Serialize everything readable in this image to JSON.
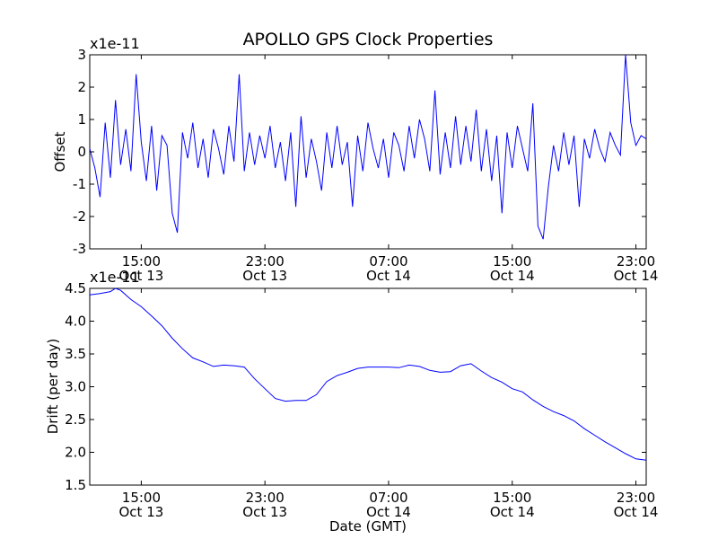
{
  "figure": {
    "title": "APOLLO GPS Clock Properties"
  },
  "chart_data": [
    {
      "type": "line",
      "title": "APOLLO GPS Clock Properties",
      "xlabel": "",
      "ylabel": "Offset",
      "y_multiplier": "x1e-11",
      "ylim": [
        -3,
        3
      ],
      "yticks": [
        "-3",
        "-2",
        "-1",
        "0",
        "1",
        "2",
        "3"
      ],
      "xticks": [
        {
          "time": "15:00",
          "date": "Oct 13"
        },
        {
          "time": "23:00",
          "date": "Oct 13"
        },
        {
          "time": "07:00",
          "date": "Oct 14"
        },
        {
          "time": "15:00",
          "date": "Oct 14"
        },
        {
          "time": "23:00",
          "date": "Oct 14"
        }
      ],
      "xlim": [
        "2011-10-13T11:40",
        "2011-10-14T23:40"
      ],
      "color": "#0000ff",
      "grid": false,
      "series": [
        {
          "x": [
            "2011-10-13T11:40",
            "2011-10-13T12:00",
            "2011-10-13T12:20",
            "2011-10-13T12:40",
            "2011-10-13T13:00",
            "2011-10-13T13:20",
            "2011-10-13T13:40",
            "2011-10-13T14:00",
            "2011-10-13T14:20",
            "2011-10-13T14:40",
            "2011-10-13T15:00",
            "2011-10-13T15:20",
            "2011-10-13T15:40",
            "2011-10-13T16:00",
            "2011-10-13T16:20",
            "2011-10-13T16:40",
            "2011-10-13T17:00",
            "2011-10-13T17:20",
            "2011-10-13T17:40",
            "2011-10-13T18:00",
            "2011-10-13T18:20",
            "2011-10-13T18:40",
            "2011-10-13T19:00",
            "2011-10-13T19:20",
            "2011-10-13T19:40",
            "2011-10-13T20:00",
            "2011-10-13T20:20",
            "2011-10-13T20:40",
            "2011-10-13T21:00",
            "2011-10-13T21:20",
            "2011-10-13T21:40",
            "2011-10-13T22:00",
            "2011-10-13T22:20",
            "2011-10-13T22:40",
            "2011-10-13T23:00",
            "2011-10-13T23:20",
            "2011-10-13T23:40",
            "2011-10-14T00:00",
            "2011-10-14T00:20",
            "2011-10-14T00:40",
            "2011-10-14T01:00",
            "2011-10-14T01:20",
            "2011-10-14T01:40",
            "2011-10-14T02:00",
            "2011-10-14T02:20",
            "2011-10-14T02:40",
            "2011-10-14T03:00",
            "2011-10-14T03:20",
            "2011-10-14T03:40",
            "2011-10-14T04:00",
            "2011-10-14T04:20",
            "2011-10-14T04:40",
            "2011-10-14T05:00",
            "2011-10-14T05:20",
            "2011-10-14T05:40",
            "2011-10-14T06:00",
            "2011-10-14T06:20",
            "2011-10-14T06:40",
            "2011-10-14T07:00",
            "2011-10-14T07:20",
            "2011-10-14T07:40",
            "2011-10-14T08:00",
            "2011-10-14T08:20",
            "2011-10-14T08:40",
            "2011-10-14T09:00",
            "2011-10-14T09:20",
            "2011-10-14T09:40",
            "2011-10-14T10:00",
            "2011-10-14T10:20",
            "2011-10-14T10:40",
            "2011-10-14T11:00",
            "2011-10-14T11:20",
            "2011-10-14T11:40",
            "2011-10-14T12:00",
            "2011-10-14T12:20",
            "2011-10-14T12:40",
            "2011-10-14T13:00",
            "2011-10-14T13:20",
            "2011-10-14T13:40",
            "2011-10-14T14:00",
            "2011-10-14T14:20",
            "2011-10-14T14:40",
            "2011-10-14T15:00",
            "2011-10-14T15:20",
            "2011-10-14T15:40",
            "2011-10-14T16:00",
            "2011-10-14T16:20",
            "2011-10-14T16:40",
            "2011-10-14T17:00",
            "2011-10-14T17:20",
            "2011-10-14T17:40",
            "2011-10-14T18:00",
            "2011-10-14T18:20",
            "2011-10-14T18:40",
            "2011-10-14T19:00",
            "2011-10-14T19:20",
            "2011-10-14T19:40",
            "2011-10-14T20:00",
            "2011-10-14T20:20",
            "2011-10-14T20:40",
            "2011-10-14T21:00",
            "2011-10-14T21:20",
            "2011-10-14T21:40",
            "2011-10-14T22:00",
            "2011-10-14T22:20",
            "2011-10-14T22:40",
            "2011-10-14T23:00",
            "2011-10-14T23:20",
            "2011-10-14T23:40"
          ],
          "values": [
            0.1,
            -0.5,
            -1.4,
            0.9,
            -0.8,
            1.6,
            -0.4,
            0.7,
            -0.6,
            2.4,
            0.3,
            -0.9,
            0.8,
            -1.2,
            0.5,
            0.2,
            -1.9,
            -2.5,
            0.6,
            -0.2,
            0.9,
            -0.5,
            0.4,
            -0.8,
            0.7,
            0.1,
            -0.7,
            0.8,
            -0.3,
            2.4,
            -0.6,
            0.6,
            -0.4,
            0.5,
            -0.2,
            0.8,
            -0.5,
            0.3,
            -0.9,
            0.6,
            -1.7,
            1.1,
            -0.8,
            0.4,
            -0.3,
            -1.2,
            0.6,
            -0.5,
            0.8,
            -0.4,
            0.3,
            -1.7,
            0.5,
            -0.6,
            0.9,
            0.1,
            -0.5,
            0.4,
            -0.8,
            0.6,
            0.2,
            -0.6,
            0.8,
            -0.2,
            1.0,
            0.4,
            -0.6,
            1.9,
            -0.7,
            0.6,
            -0.5,
            1.1,
            -0.4,
            0.8,
            -0.3,
            1.3,
            -0.6,
            0.7,
            -0.9,
            0.5,
            -1.9,
            0.6,
            -0.5,
            0.8,
            0.1,
            -0.6,
            1.5,
            -2.3,
            -2.7,
            -1.1,
            0.2,
            -0.6,
            0.6,
            -0.4,
            0.5,
            -1.7,
            0.4,
            -0.2,
            0.7,
            0.1,
            -0.3,
            0.6,
            0.2,
            -0.1,
            3.0,
            0.9,
            0.2,
            0.5,
            0.4
          ]
        }
      ]
    },
    {
      "type": "line",
      "title": "",
      "xlabel": "Date (GMT)",
      "ylabel": "Drift (per day)",
      "y_multiplier": "x1e-11",
      "ylim": [
        1.5,
        4.5
      ],
      "yticks": [
        "1.5",
        "2.0",
        "2.5",
        "3.0",
        "3.5",
        "4.0",
        "4.5"
      ],
      "xticks": [
        {
          "time": "15:00",
          "date": "Oct 13"
        },
        {
          "time": "23:00",
          "date": "Oct 13"
        },
        {
          "time": "07:00",
          "date": "Oct 14"
        },
        {
          "time": "15:00",
          "date": "Oct 14"
        },
        {
          "time": "23:00",
          "date": "Oct 14"
        }
      ],
      "xlim": [
        "2011-10-13T11:40",
        "2011-10-14T23:40"
      ],
      "color": "#0000ff",
      "grid": false,
      "series": [
        {
          "x": [
            "2011-10-13T11:40",
            "2011-10-13T12:20",
            "2011-10-13T13:00",
            "2011-10-13T13:20",
            "2011-10-13T13:40",
            "2011-10-13T14:20",
            "2011-10-13T15:00",
            "2011-10-13T15:40",
            "2011-10-13T16:20",
            "2011-10-13T17:00",
            "2011-10-13T17:40",
            "2011-10-13T18:20",
            "2011-10-13T19:00",
            "2011-10-13T19:40",
            "2011-10-13T20:20",
            "2011-10-13T21:00",
            "2011-10-13T21:40",
            "2011-10-13T22:20",
            "2011-10-13T23:00",
            "2011-10-13T23:40",
            "2011-10-14T00:20",
            "2011-10-14T01:00",
            "2011-10-14T01:40",
            "2011-10-14T02:20",
            "2011-10-14T03:00",
            "2011-10-14T03:40",
            "2011-10-14T04:20",
            "2011-10-14T05:00",
            "2011-10-14T05:40",
            "2011-10-14T06:20",
            "2011-10-14T07:00",
            "2011-10-14T07:40",
            "2011-10-14T08:20",
            "2011-10-14T09:00",
            "2011-10-14T09:40",
            "2011-10-14T10:20",
            "2011-10-14T11:00",
            "2011-10-14T11:40",
            "2011-10-14T12:20",
            "2011-10-14T13:00",
            "2011-10-14T13:40",
            "2011-10-14T14:20",
            "2011-10-14T15:00",
            "2011-10-14T15:40",
            "2011-10-14T16:20",
            "2011-10-14T17:00",
            "2011-10-14T17:40",
            "2011-10-14T18:20",
            "2011-10-14T19:00",
            "2011-10-14T19:40",
            "2011-10-14T20:20",
            "2011-10-14T21:00",
            "2011-10-14T21:40",
            "2011-10-14T22:20",
            "2011-10-14T23:00",
            "2011-10-14T23:40"
          ],
          "values": [
            4.4,
            4.42,
            4.45,
            4.5,
            4.47,
            4.33,
            4.22,
            4.08,
            3.93,
            3.74,
            3.58,
            3.44,
            3.38,
            3.31,
            3.33,
            3.32,
            3.3,
            3.12,
            2.97,
            2.82,
            2.78,
            2.79,
            2.79,
            2.88,
            3.08,
            3.17,
            3.22,
            3.28,
            3.3,
            3.3,
            3.3,
            3.29,
            3.33,
            3.31,
            3.25,
            3.22,
            3.23,
            3.32,
            3.35,
            3.24,
            3.14,
            3.07,
            2.97,
            2.92,
            2.8,
            2.7,
            2.62,
            2.56,
            2.48,
            2.36,
            2.26,
            2.16,
            2.07,
            1.98,
            1.9,
            1.88
          ]
        }
      ]
    }
  ]
}
